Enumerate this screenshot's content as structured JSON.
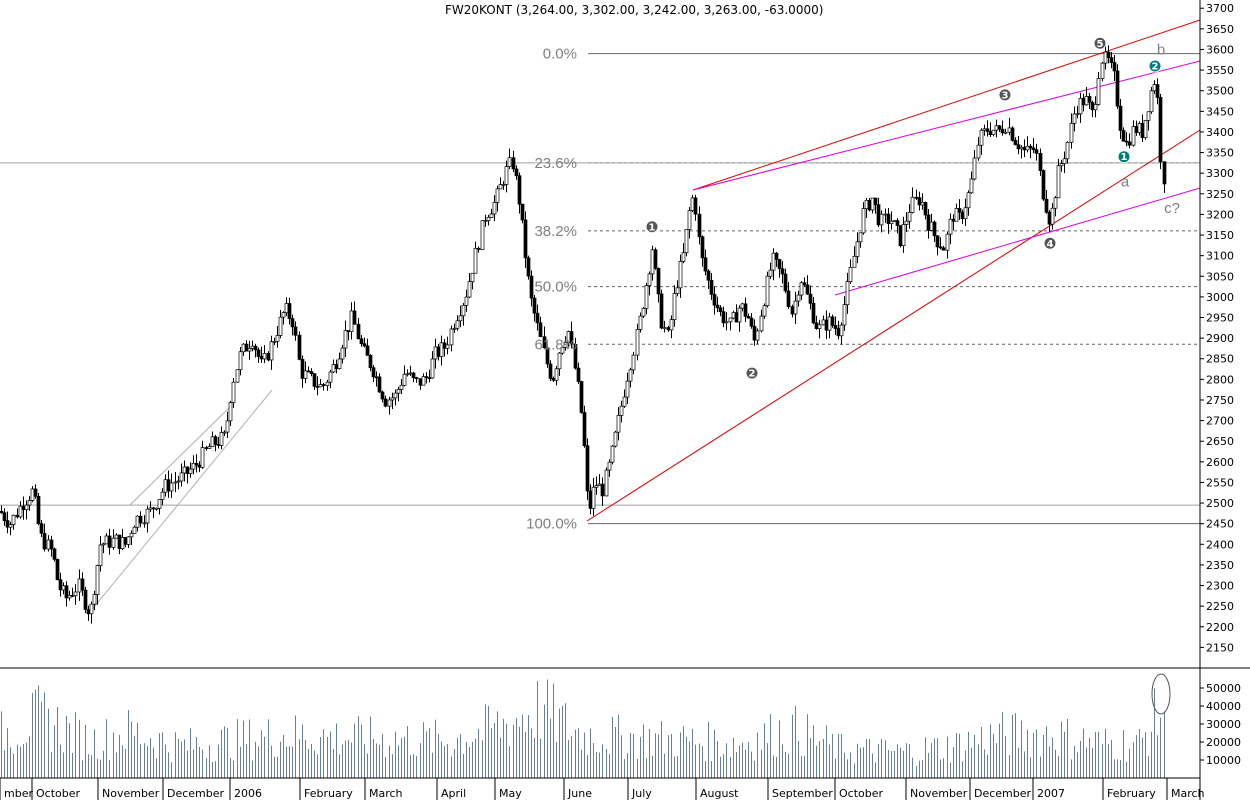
{
  "header": {
    "title": "FW20KONT (3,264.00, 3,302.00, 3,242.00, 3,263.00, -63.0000)"
  },
  "colors": {
    "candle": "#000000",
    "fib_line": "#666666",
    "channel_red": "#e00000",
    "channel_magenta": "#dd00dd",
    "volume": "#6a7f8f",
    "wave_grey": "#555555",
    "wave_teal": "#007d7d"
  },
  "chart_data": {
    "type": "candlestick",
    "title": "FW20KONT (3,264.00, 3,302.00, 3,242.00, 3,263.00, -63.0000)",
    "price_axis": {
      "ylim": [
        2100,
        3720
      ],
      "ticks": [
        3700,
        3650,
        3600,
        3550,
        3500,
        3450,
        3400,
        3350,
        3300,
        3250,
        3200,
        3150,
        3100,
        3050,
        3000,
        2950,
        2900,
        2850,
        2800,
        2750,
        2700,
        2650,
        2600,
        2550,
        2500,
        2450,
        2400,
        2350,
        2300,
        2250,
        2200,
        2150
      ]
    },
    "volume_axis": {
      "ticks": [
        50000,
        40000,
        30000,
        20000,
        10000
      ]
    },
    "time_axis": {
      "labels": [
        "mber",
        "October",
        "November",
        "December",
        "2006",
        "February",
        "March",
        "April",
        "May",
        "June",
        "July",
        "August",
        "September",
        "October",
        "November",
        "December",
        "2007",
        "February",
        "March"
      ]
    },
    "ohlc_anchors": [
      {
        "x": 0,
        "y": 2480
      },
      {
        "x": 10,
        "y": 2450
      },
      {
        "x": 22,
        "y": 2500
      },
      {
        "x": 33,
        "y": 2530
      },
      {
        "x": 40,
        "y": 2420
      },
      {
        "x": 52,
        "y": 2380
      },
      {
        "x": 58,
        "y": 2300
      },
      {
        "x": 66,
        "y": 2270
      },
      {
        "x": 78,
        "y": 2300
      },
      {
        "x": 90,
        "y": 2230
      },
      {
        "x": 100,
        "y": 2400
      },
      {
        "x": 115,
        "y": 2410
      },
      {
        "x": 125,
        "y": 2400
      },
      {
        "x": 135,
        "y": 2460
      },
      {
        "x": 150,
        "y": 2480
      },
      {
        "x": 165,
        "y": 2540
      },
      {
        "x": 180,
        "y": 2560
      },
      {
        "x": 195,
        "y": 2590
      },
      {
        "x": 210,
        "y": 2640
      },
      {
        "x": 225,
        "y": 2660
      },
      {
        "x": 232,
        "y": 2790
      },
      {
        "x": 240,
        "y": 2860
      },
      {
        "x": 252,
        "y": 2900
      },
      {
        "x": 262,
        "y": 2830
      },
      {
        "x": 272,
        "y": 2890
      },
      {
        "x": 285,
        "y": 2970
      },
      {
        "x": 293,
        "y": 2940
      },
      {
        "x": 300,
        "y": 2820
      },
      {
        "x": 310,
        "y": 2800
      },
      {
        "x": 322,
        "y": 2780
      },
      {
        "x": 335,
        "y": 2840
      },
      {
        "x": 343,
        "y": 2900
      },
      {
        "x": 352,
        "y": 2950
      },
      {
        "x": 362,
        "y": 2870
      },
      {
        "x": 372,
        "y": 2830
      },
      {
        "x": 385,
        "y": 2750
      },
      {
        "x": 395,
        "y": 2760
      },
      {
        "x": 405,
        "y": 2820
      },
      {
        "x": 415,
        "y": 2790
      },
      {
        "x": 425,
        "y": 2800
      },
      {
        "x": 435,
        "y": 2860
      },
      {
        "x": 445,
        "y": 2880
      },
      {
        "x": 455,
        "y": 2950
      },
      {
        "x": 465,
        "y": 3000
      },
      {
        "x": 475,
        "y": 3100
      },
      {
        "x": 485,
        "y": 3200
      },
      {
        "x": 495,
        "y": 3230
      },
      {
        "x": 505,
        "y": 3300
      },
      {
        "x": 512,
        "y": 3330
      },
      {
        "x": 518,
        "y": 3250
      },
      {
        "x": 525,
        "y": 3100
      },
      {
        "x": 530,
        "y": 3000
      },
      {
        "x": 538,
        "y": 2920
      },
      {
        "x": 545,
        "y": 2850
      },
      {
        "x": 552,
        "y": 2800
      },
      {
        "x": 560,
        "y": 2880
      },
      {
        "x": 568,
        "y": 2920
      },
      {
        "x": 575,
        "y": 2820
      },
      {
        "x": 580,
        "y": 2740
      },
      {
        "x": 585,
        "y": 2600
      },
      {
        "x": 588,
        "y": 2470
      },
      {
        "x": 595,
        "y": 2550
      },
      {
        "x": 602,
        "y": 2530
      },
      {
        "x": 610,
        "y": 2600
      },
      {
        "x": 618,
        "y": 2700
      },
      {
        "x": 628,
        "y": 2820
      },
      {
        "x": 638,
        "y": 2920
      },
      {
        "x": 645,
        "y": 3020
      },
      {
        "x": 652,
        "y": 3120
      },
      {
        "x": 660,
        "y": 2950
      },
      {
        "x": 668,
        "y": 2900
      },
      {
        "x": 675,
        "y": 3020
      },
      {
        "x": 683,
        "y": 3100
      },
      {
        "x": 690,
        "y": 3220
      },
      {
        "x": 694,
        "y": 3250
      },
      {
        "x": 700,
        "y": 3100
      },
      {
        "x": 710,
        "y": 3020
      },
      {
        "x": 720,
        "y": 2960
      },
      {
        "x": 730,
        "y": 2930
      },
      {
        "x": 740,
        "y": 2980
      },
      {
        "x": 748,
        "y": 2950
      },
      {
        "x": 754,
        "y": 2890
      },
      {
        "x": 762,
        "y": 2980
      },
      {
        "x": 772,
        "y": 3090
      },
      {
        "x": 782,
        "y": 3050
      },
      {
        "x": 792,
        "y": 2960
      },
      {
        "x": 800,
        "y": 3050
      },
      {
        "x": 810,
        "y": 2980
      },
      {
        "x": 818,
        "y": 2920
      },
      {
        "x": 828,
        "y": 2940
      },
      {
        "x": 838,
        "y": 2920
      },
      {
        "x": 845,
        "y": 2990
      },
      {
        "x": 852,
        "y": 3080
      },
      {
        "x": 862,
        "y": 3200
      },
      {
        "x": 872,
        "y": 3240
      },
      {
        "x": 880,
        "y": 3180
      },
      {
        "x": 890,
        "y": 3190
      },
      {
        "x": 900,
        "y": 3140
      },
      {
        "x": 910,
        "y": 3220
      },
      {
        "x": 920,
        "y": 3240
      },
      {
        "x": 928,
        "y": 3180
      },
      {
        "x": 936,
        "y": 3140
      },
      {
        "x": 944,
        "y": 3120
      },
      {
        "x": 952,
        "y": 3200
      },
      {
        "x": 960,
        "y": 3190
      },
      {
        "x": 970,
        "y": 3260
      },
      {
        "x": 978,
        "y": 3380
      },
      {
        "x": 988,
        "y": 3410
      },
      {
        "x": 998,
        "y": 3400
      },
      {
        "x": 1006,
        "y": 3420
      },
      {
        "x": 1015,
        "y": 3380
      },
      {
        "x": 1025,
        "y": 3350
      },
      {
        "x": 1035,
        "y": 3360
      },
      {
        "x": 1042,
        "y": 3260
      },
      {
        "x": 1050,
        "y": 3180
      },
      {
        "x": 1058,
        "y": 3300
      },
      {
        "x": 1066,
        "y": 3360
      },
      {
        "x": 1075,
        "y": 3460
      },
      {
        "x": 1085,
        "y": 3480
      },
      {
        "x": 1093,
        "y": 3440
      },
      {
        "x": 1100,
        "y": 3580
      },
      {
        "x": 1108,
        "y": 3570
      },
      {
        "x": 1114,
        "y": 3530
      },
      {
        "x": 1120,
        "y": 3420
      },
      {
        "x": 1126,
        "y": 3370
      },
      {
        "x": 1134,
        "y": 3410
      },
      {
        "x": 1142,
        "y": 3400
      },
      {
        "x": 1150,
        "y": 3490
      },
      {
        "x": 1156,
        "y": 3540
      },
      {
        "x": 1160,
        "y": 3350
      },
      {
        "x": 1165,
        "y": 3265
      }
    ],
    "volume_profile": [
      {
        "x": 0,
        "v": 30000
      },
      {
        "x": 40,
        "v": 42000
      },
      {
        "x": 90,
        "v": 25000
      },
      {
        "x": 130,
        "v": 32000
      },
      {
        "x": 180,
        "v": 22000
      },
      {
        "x": 230,
        "v": 26000
      },
      {
        "x": 290,
        "v": 30000
      },
      {
        "x": 340,
        "v": 28000
      },
      {
        "x": 400,
        "v": 27000
      },
      {
        "x": 450,
        "v": 26000
      },
      {
        "x": 500,
        "v": 36000
      },
      {
        "x": 540,
        "v": 48000
      },
      {
        "x": 580,
        "v": 30000
      },
      {
        "x": 630,
        "v": 28000
      },
      {
        "x": 680,
        "v": 26000
      },
      {
        "x": 740,
        "v": 24000
      },
      {
        "x": 790,
        "v": 34000
      },
      {
        "x": 840,
        "v": 20000
      },
      {
        "x": 900,
        "v": 18000
      },
      {
        "x": 950,
        "v": 22000
      },
      {
        "x": 1000,
        "v": 30000
      },
      {
        "x": 1050,
        "v": 30000
      },
      {
        "x": 1100,
        "v": 24000
      },
      {
        "x": 1140,
        "v": 24000
      },
      {
        "x": 1165,
        "v": 52000
      }
    ],
    "fibonacci": [
      {
        "label": "0.0%",
        "y": 3590
      },
      {
        "label": "23.6%",
        "y": 3325
      },
      {
        "label": "38.2%",
        "y": 3160
      },
      {
        "label": "50.0%",
        "y": 3025
      },
      {
        "label": "61.8%",
        "y": 2885
      },
      {
        "label": "100.0%",
        "y": 2450
      }
    ],
    "horizontal_ref_prices": [
      3325,
      2495
    ],
    "wave_markers": [
      {
        "label": "1",
        "color": "grey",
        "x": 652,
        "y": 3170
      },
      {
        "label": "2",
        "color": "grey",
        "x": 752,
        "y": 2815
      },
      {
        "label": "3",
        "color": "grey",
        "x": 1005,
        "y": 3490
      },
      {
        "label": "4",
        "color": "grey",
        "x": 1050,
        "y": 3130
      },
      {
        "label": "5",
        "color": "grey",
        "x": 1100,
        "y": 3615
      },
      {
        "label": "1",
        "color": "teal",
        "x": 1124,
        "y": 3340
      },
      {
        "label": "2",
        "color": "teal",
        "x": 1155,
        "y": 3560
      }
    ],
    "letter_annotations": [
      {
        "label": "b",
        "x": 1161,
        "y": 3600
      },
      {
        "label": "a",
        "x": 1125,
        "y": 3280
      },
      {
        "label": "c?",
        "x": 1172,
        "y": 3215
      }
    ]
  }
}
